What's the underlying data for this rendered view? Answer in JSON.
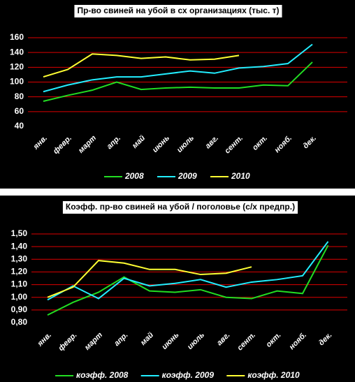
{
  "chart_data": [
    {
      "type": "line",
      "title": "Пр-во свиней на убой в сх организациях (тыс. т)",
      "categories": [
        "янв.",
        "февр.",
        "март",
        "апр.",
        "май",
        "июнь",
        "июль",
        "авг.",
        "сент.",
        "окт.",
        "нояб.",
        "дек."
      ],
      "series": [
        {
          "name": "2008",
          "color": "#22dd22",
          "values": [
            74,
            82,
            89,
            100,
            90,
            92,
            93,
            92,
            92,
            96,
            95,
            127
          ]
        },
        {
          "name": "2009",
          "color": "#22eeff",
          "values": [
            87,
            96,
            103,
            107,
            107,
            111,
            115,
            112,
            119,
            121,
            125,
            151
          ]
        },
        {
          "name": "2010",
          "color": "#ffff33",
          "values": [
            107,
            117,
            138,
            136,
            132,
            134,
            130,
            131,
            136,
            null,
            null,
            null
          ]
        }
      ],
      "ylim": [
        40,
        160
      ],
      "yticks": [
        40,
        60,
        80,
        100,
        120,
        140,
        160
      ],
      "grid": true
    },
    {
      "type": "line",
      "title": "Коэфф. пр-во свиней на убой / поголовье (с/х предпр.)",
      "categories": [
        "янв.",
        "февр.",
        "март",
        "апр.",
        "май",
        "июнь",
        "июль",
        "авг.",
        "сент.",
        "окт.",
        "нояб.",
        "дек."
      ],
      "series": [
        {
          "name": "коэфф. 2008",
          "color": "#22dd22",
          "values": [
            0.86,
            0.96,
            1.04,
            1.16,
            1.05,
            1.04,
            1.06,
            1.0,
            0.99,
            1.05,
            1.03,
            1.41
          ]
        },
        {
          "name": "коэфф. 2009",
          "color": "#22eeff",
          "values": [
            0.98,
            1.09,
            0.99,
            1.15,
            1.09,
            1.11,
            1.14,
            1.08,
            1.12,
            1.14,
            1.17,
            1.44
          ]
        },
        {
          "name": "коэфф. 2010",
          "color": "#ffff33",
          "values": [
            1.0,
            1.08,
            1.29,
            1.27,
            1.22,
            1.22,
            1.18,
            1.19,
            1.24,
            null,
            null,
            null
          ]
        }
      ],
      "ylim": [
        0.8,
        1.5
      ],
      "yticks": [
        {
          "value": 0.8,
          "label": "0,80"
        },
        {
          "value": 0.9,
          "label": "0,90"
        },
        {
          "value": 1.0,
          "label": "1,00"
        },
        {
          "value": 1.1,
          "label": "1,10"
        },
        {
          "value": 1.2,
          "label": "1,20"
        },
        {
          "value": 1.3,
          "label": "1,30"
        },
        {
          "value": 1.4,
          "label": "1,40"
        },
        {
          "value": 1.5,
          "label": "1,50"
        }
      ],
      "grid": true
    }
  ]
}
